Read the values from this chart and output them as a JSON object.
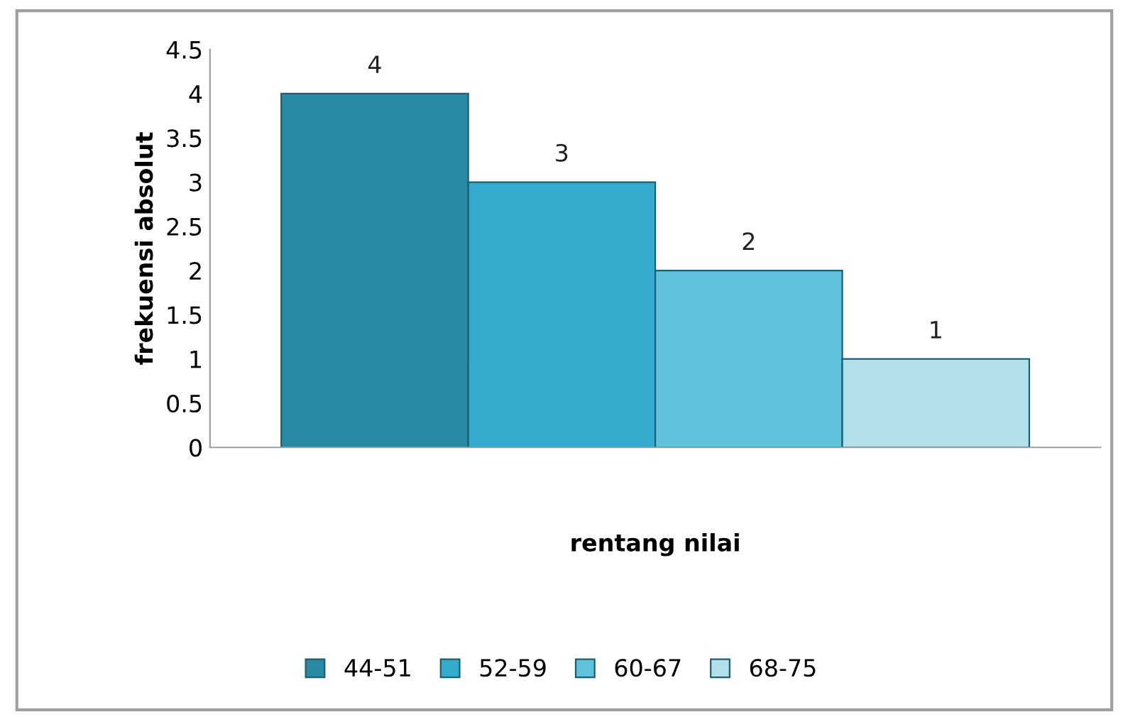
{
  "chart_data": {
    "type": "bar",
    "xlabel": "rentang nilai",
    "ylabel": "frekuensi absolut",
    "categories": [
      null
    ],
    "series": [
      {
        "name": "44-51",
        "color": "#2a8aa5",
        "values": [
          4
        ]
      },
      {
        "name": "52-59",
        "color": "#34abcd",
        "values": [
          3
        ]
      },
      {
        "name": "60-67",
        "color": "#5fc2db",
        "values": [
          2
        ]
      },
      {
        "name": "68-75",
        "color": "#b3dfea",
        "values": [
          1
        ]
      }
    ],
    "ylim": [
      0,
      4.5
    ],
    "yticks": [
      0,
      0.5,
      1,
      1.5,
      2,
      2.5,
      3,
      3.5,
      4,
      4.5
    ],
    "data_labels": true,
    "grid": false,
    "legend": "bottom"
  }
}
